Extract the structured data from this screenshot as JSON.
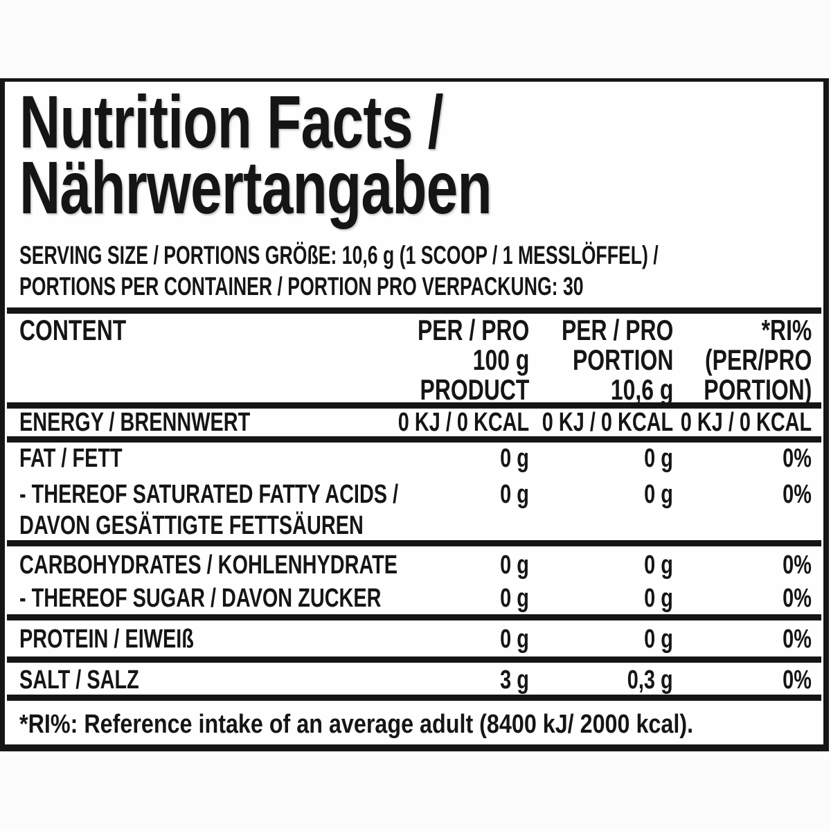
{
  "label": {
    "title_line1": "Nutrition Facts /",
    "title_line2": "Nährwertangaben",
    "serving_line1": "SERVING SIZE / PORTIONS GRÖßE: 10,6 g (1 SCOOP / 1 MESSLÖFFEL) /",
    "serving_line2": "PORTIONS PER CONTAINER / PORTION PRO VERPACKUNG: 30",
    "table": {
      "header": {
        "content": "CONTENT",
        "col_per100": [
          "PER / PRO",
          "100 g",
          "PRODUCT"
        ],
        "col_portion": [
          "PER / PRO",
          "PORTION",
          "10,6 g"
        ],
        "col_ri": [
          "*RI%",
          "(PER/PRO",
          "PORTION)"
        ]
      },
      "rows": [
        {
          "id": "energy",
          "label_lines": [
            "ENERGY / BRENNWERT"
          ],
          "per100": "0 KJ / 0 KCAL",
          "portion": "0 KJ / 0 KCAL",
          "ri": "0 KJ / 0 KCAL"
        },
        {
          "id": "fat",
          "label_lines": [
            "FAT / FETT"
          ],
          "per100": "0 g",
          "portion": "0 g",
          "ri": "0%"
        },
        {
          "id": "saturated-fat",
          "label_lines": [
            "- THEREOF SATURATED FATTY ACIDS /",
            "DAVON GESÄTTIGTE FETTSÄUREN"
          ],
          "per100": "0 g",
          "portion": "0 g",
          "ri": "0%"
        },
        {
          "id": "carbohydrates",
          "label_lines": [
            "CARBOHYDRATES / KOHLENHYDRATE"
          ],
          "per100": "0 g",
          "portion": "0 g",
          "ri": "0%"
        },
        {
          "id": "sugar",
          "label_lines": [
            "- THEREOF SUGAR / DAVON ZUCKER"
          ],
          "per100": "0 g",
          "portion": "0 g",
          "ri": "0%"
        },
        {
          "id": "protein",
          "label_lines": [
            "PROTEIN / EIWEIß"
          ],
          "per100": "0 g",
          "portion": "0 g",
          "ri": "0%"
        },
        {
          "id": "salt",
          "label_lines": [
            "SALT / SALZ"
          ],
          "per100": "3 g",
          "portion": "0,3 g",
          "ri": "0%"
        }
      ]
    },
    "footnote": "*RI%: Reference intake of an average adult (8400 kJ/ 2000 kcal).",
    "colors": {
      "text": "#151515",
      "border": "#161616",
      "background": "#fefefe"
    }
  }
}
